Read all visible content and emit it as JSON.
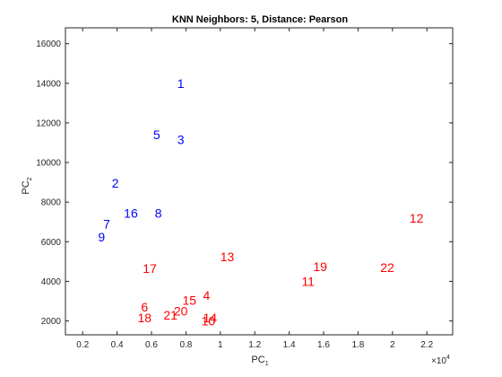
{
  "chart_data": {
    "type": "scatter",
    "title": "KNN Neighbors: 5, Distance: Pearson",
    "xlabel": "PC",
    "xlabel_sub": "1",
    "ylabel": "PC",
    "ylabel_sub": "2",
    "x_multiplier_base": "×10",
    "x_multiplier_exp": "4",
    "xlim": [
      0.1,
      2.35
    ],
    "ylim": [
      1300,
      16800
    ],
    "xticks": [
      0.2,
      0.4,
      0.6,
      0.8,
      1,
      1.2,
      1.4,
      1.6,
      1.8,
      2,
      2.2
    ],
    "xtick_labels": [
      "0.2",
      "0.4",
      "0.6",
      "0.8",
      "1",
      "1.2",
      "1.4",
      "1.6",
      "1.8",
      "2",
      "2.2"
    ],
    "yticks": [
      2000,
      4000,
      6000,
      8000,
      10000,
      12000,
      14000,
      16000
    ],
    "ytick_labels": [
      "2000",
      "4000",
      "6000",
      "8000",
      "10000",
      "12000",
      "14000",
      "16000"
    ],
    "grid": false,
    "legend": "none",
    "series": [
      {
        "color": "#0000ff",
        "points": [
          {
            "label": "1",
            "x": 0.77,
            "y": 14000
          },
          {
            "label": "5",
            "x": 0.63,
            "y": 11400
          },
          {
            "label": "3",
            "x": 0.77,
            "y": 11150
          },
          {
            "label": "2",
            "x": 0.39,
            "y": 8950
          },
          {
            "label": "16",
            "x": 0.48,
            "y": 7450
          },
          {
            "label": "8",
            "x": 0.64,
            "y": 7450
          },
          {
            "label": "7",
            "x": 0.34,
            "y": 6900
          },
          {
            "label": "9",
            "x": 0.31,
            "y": 6250
          }
        ]
      },
      {
        "color": "#ff0000",
        "points": [
          {
            "label": "12",
            "x": 2.14,
            "y": 7200
          },
          {
            "label": "13",
            "x": 1.04,
            "y": 5250
          },
          {
            "label": "19",
            "x": 1.58,
            "y": 4750
          },
          {
            "label": "22",
            "x": 1.97,
            "y": 4700
          },
          {
            "label": "17",
            "x": 0.59,
            "y": 4650
          },
          {
            "label": "11",
            "x": 1.51,
            "y": 4000
          },
          {
            "label": "4",
            "x": 0.92,
            "y": 3300
          },
          {
            "label": "15",
            "x": 0.82,
            "y": 3050
          },
          {
            "label": "6",
            "x": 0.56,
            "y": 2700
          },
          {
            "label": "20",
            "x": 0.77,
            "y": 2500
          },
          {
            "label": "21",
            "x": 0.71,
            "y": 2300
          },
          {
            "label": "18",
            "x": 0.56,
            "y": 2150
          },
          {
            "label": "14",
            "x": 0.94,
            "y": 2150
          },
          {
            "label": "10",
            "x": 0.93,
            "y": 2000
          }
        ]
      }
    ]
  }
}
